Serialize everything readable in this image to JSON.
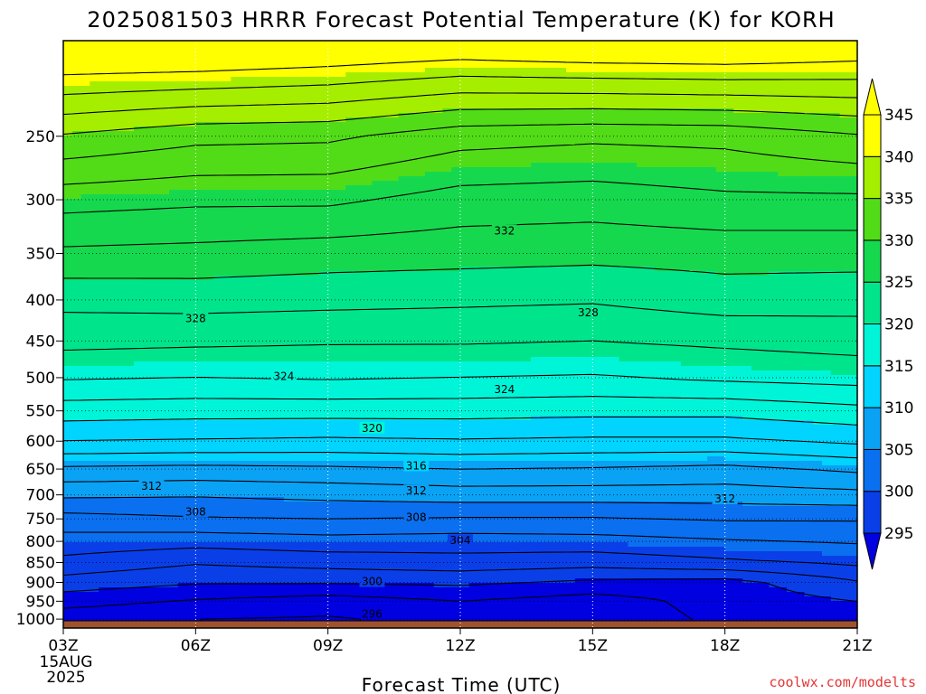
{
  "chart_data": {
    "type": "heatmap",
    "title": "2025081503 HRRR Forecast Potential Temperature (K) for KORH",
    "xlabel": "Forecast Time (UTC)",
    "ylabel": "",
    "x_ticks": [
      "03Z",
      "06Z",
      "09Z",
      "12Z",
      "15Z",
      "18Z",
      "21Z"
    ],
    "x_hours": [
      3,
      6,
      9,
      12,
      15,
      18,
      21
    ],
    "x_date_label": [
      "15AUG",
      "2025"
    ],
    "xlim": [
      3,
      21
    ],
    "y_ticks": [
      250,
      300,
      350,
      400,
      450,
      500,
      550,
      600,
      650,
      700,
      750,
      800,
      850,
      900,
      950,
      1000
    ],
    "ylim": [
      1026,
      190
    ],
    "y_scale": "log",
    "y_unit": "hPa",
    "surface_pressure": 1005,
    "grid": true,
    "colorbar": {
      "levels": [
        295,
        300,
        305,
        310,
        315,
        320,
        325,
        330,
        335,
        340,
        345
      ],
      "colors": [
        "#0000e0",
        "#0a3fe8",
        "#0a70f0",
        "#0aa2f5",
        "#00d4ff",
        "#00f5d8",
        "#00e58c",
        "#16d84e",
        "#52dc18",
        "#a6ee00",
        "#ffff00",
        "#ffff00"
      ],
      "extend": "both",
      "location": "right"
    },
    "contour_interval": 2,
    "contour_labels": [
      {
        "value": 332,
        "hour": 13.0,
        "pressure": 328
      },
      {
        "value": 328,
        "hour": 6.0,
        "pressure": 422
      },
      {
        "value": 328,
        "hour": 14.9,
        "pressure": 415
      },
      {
        "value": 324,
        "hour": 8.0,
        "pressure": 498
      },
      {
        "value": 324,
        "hour": 13.0,
        "pressure": 517
      },
      {
        "value": 320,
        "hour": 10.0,
        "pressure": 578
      },
      {
        "value": 316,
        "hour": 11.0,
        "pressure": 644
      },
      {
        "value": 312,
        "hour": 5.0,
        "pressure": 683
      },
      {
        "value": 312,
        "hour": 11.0,
        "pressure": 692
      },
      {
        "value": 312,
        "hour": 18.0,
        "pressure": 708
      },
      {
        "value": 308,
        "hour": 6.0,
        "pressure": 735
      },
      {
        "value": 308,
        "hour": 11.0,
        "pressure": 747
      },
      {
        "value": 304,
        "hour": 12.0,
        "pressure": 798
      },
      {
        "value": 300,
        "hour": 10.0,
        "pressure": 898
      },
      {
        "value": 296,
        "hour": 10.0,
        "pressure": 985
      }
    ],
    "series": [
      {
        "hour": 3,
        "theta_by_level": {
          "225": 343.5,
          "250": 339.8,
          "300": 334.8,
          "350": 331.6,
          "400": 328.6,
          "450": 326.6,
          "500": 324.2,
          "550": 321.0,
          "600": 318.0,
          "650": 313.6,
          "700": 310.4,
          "750": 307.2,
          "800": 305.2,
          "850": 303.4,
          "900": 301.2,
          "950": 298.8,
          "1000": 296.8
        }
      },
      {
        "hour": 6,
        "theta_by_level": {
          "225": 342.8,
          "250": 338.6,
          "300": 334.4,
          "350": 331.4,
          "400": 328.8,
          "450": 326.4,
          "500": 324.0,
          "550": 320.8,
          "600": 317.8,
          "650": 313.4,
          "700": 310.2,
          "750": 307.8,
          "800": 304.8,
          "850": 302.2,
          "900": 300.2,
          "950": 297.8,
          "1000": 296.0
        }
      },
      {
        "hour": 9,
        "theta_by_level": {
          "225": 342.4,
          "250": 338.4,
          "300": 334.4,
          "350": 331.0,
          "400": 328.6,
          "450": 326.2,
          "500": 324.2,
          "550": 320.8,
          "600": 317.6,
          "650": 313.6,
          "700": 310.6,
          "750": 308.0,
          "800": 305.2,
          "850": 302.8,
          "900": 300.2,
          "950": 297.0,
          "1000": 295.8
        }
      },
      {
        "hour": 12,
        "theta_by_level": {
          "225": 341.2,
          "250": 336.8,
          "300": 333.2,
          "350": 330.8,
          "400": 328.4,
          "450": 326.2,
          "500": 324.0,
          "550": 320.8,
          "600": 317.8,
          "650": 314.0,
          "700": 311.0,
          "750": 307.8,
          "800": 305.0,
          "850": 303.2,
          "900": 300.4,
          "950": 298.0,
          "1000": 296.6
        }
      },
      {
        "hour": 15,
        "theta_by_level": {
          "225": 341.2,
          "250": 336.4,
          "300": 333.0,
          "350": 330.6,
          "400": 328.2,
          "450": 326.0,
          "500": 323.8,
          "550": 320.6,
          "600": 317.6,
          "650": 313.8,
          "700": 311.0,
          "750": 307.8,
          "800": 305.2,
          "850": 302.8,
          "900": 299.6,
          "950": 297.0,
          "1000": 296.8
        }
      },
      {
        "hour": 18,
        "theta_by_level": {
          "225": 341.4,
          "250": 336.6,
          "300": 333.6,
          "350": 330.8,
          "400": 329.0,
          "450": 326.4,
          "500": 324.4,
          "550": 320.6,
          "600": 317.6,
          "650": 313.4,
          "700": 311.0,
          "750": 308.2,
          "800": 305.8,
          "850": 303.6,
          "900": 299.2,
          "950": 298.8,
          "1000": 298.4
        }
      },
      {
        "hour": 21,
        "theta_by_level": {
          "225": 341.8,
          "250": 337.8,
          "300": 333.6,
          "350": 330.8,
          "400": 328.8,
          "450": 326.8,
          "500": 324.8,
          "550": 321.4,
          "600": 318.4,
          "650": 314.4,
          "700": 311.4,
          "750": 308.2,
          "800": 306.2,
          "850": 304.4,
          "900": 301.8,
          "950": 300.0,
          "1000": 299.0
        }
      }
    ]
  },
  "credit": "coolwx.com/modelts"
}
